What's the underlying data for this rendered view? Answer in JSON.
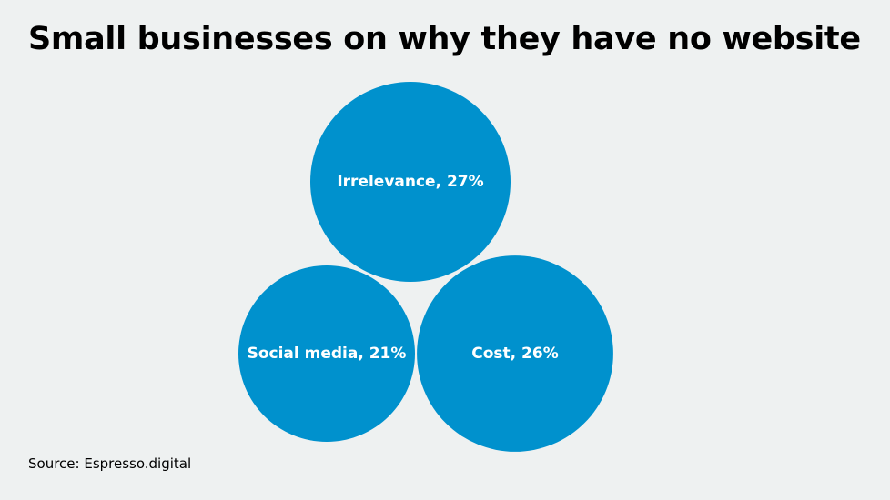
{
  "title": "Small businesses on why they have no website",
  "source": "Source: Espresso.digital",
  "colors": {
    "background": "#eef1f1",
    "bubble": "#0091cd",
    "text": "#000000",
    "label": "#ffffff"
  },
  "chart_data": {
    "type": "bubble",
    "title": "Small businesses on why they have no website",
    "unit": "%",
    "items": [
      {
        "label": "Irrelevance, 27%",
        "category": "Irrelevance",
        "value": 27
      },
      {
        "label": "Social media, 21%",
        "category": "Social media",
        "value": 21
      },
      {
        "label": "Cost, 26%",
        "category": "Cost",
        "value": 26
      }
    ]
  }
}
